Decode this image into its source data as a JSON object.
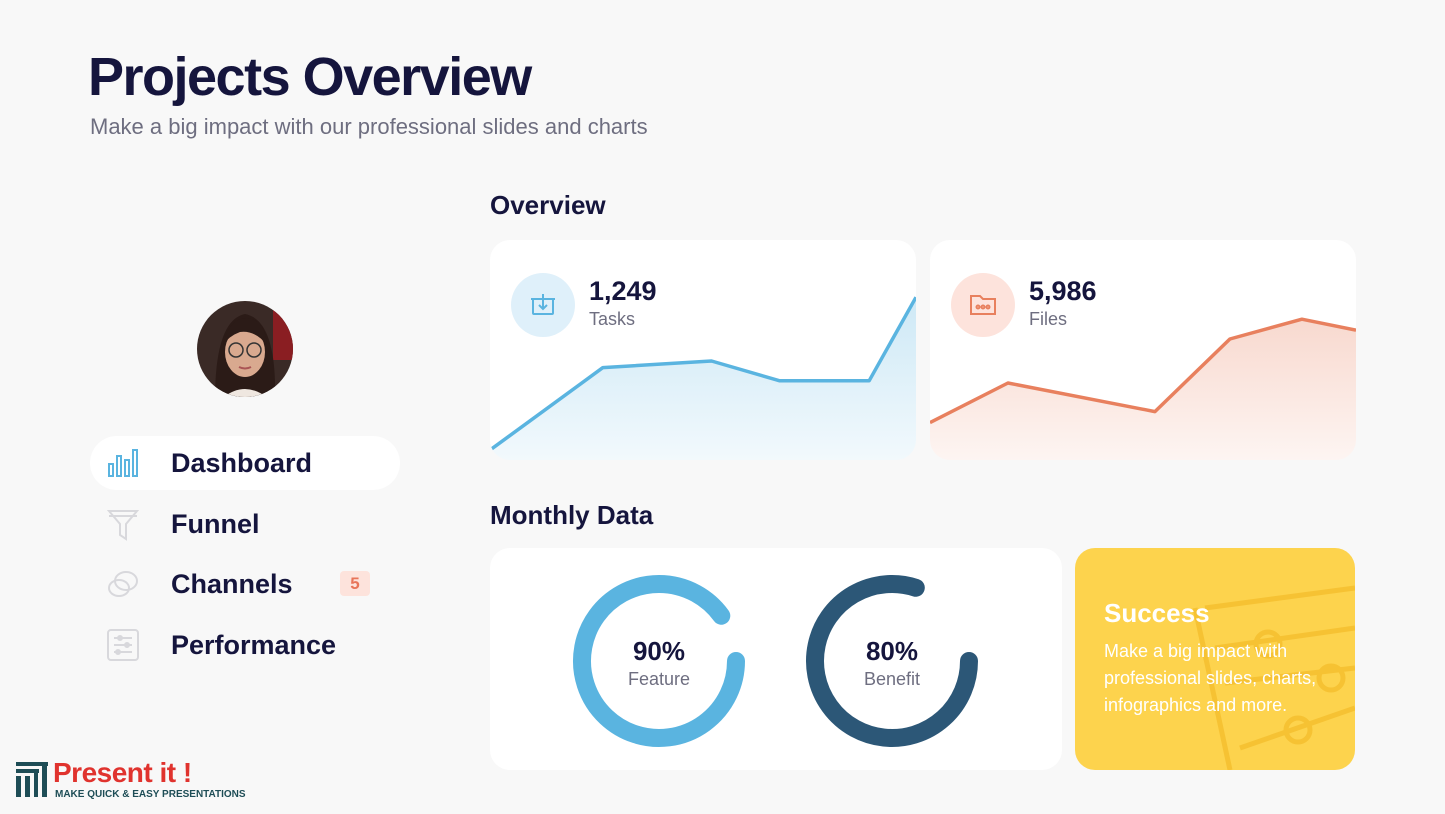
{
  "header": {
    "title": "Projects Overview",
    "subtitle": "Make a big impact with our professional slides and charts"
  },
  "sidebar": {
    "menu": [
      {
        "label": "Dashboard",
        "active": true
      },
      {
        "label": "Funnel",
        "active": false
      },
      {
        "label": "Channels",
        "active": false,
        "badge": 5
      },
      {
        "label": "Performance",
        "active": false
      }
    ]
  },
  "overview": {
    "title": "Overview",
    "cards": [
      {
        "value": 1249,
        "value_label": "1,249",
        "label": "Tasks",
        "color": "#5ab4e0",
        "xlim": [
          0,
          100
        ],
        "ylim": [
          0,
          100
        ],
        "trend_x": [
          0,
          26.5,
          52,
          68,
          89,
          100
        ],
        "trend_y": [
          4.5,
          42,
          45,
          36,
          36,
          74
        ]
      },
      {
        "value": 5986,
        "value_label": "5,986",
        "label": "Files",
        "color": "#e8805e",
        "xlim": [
          0,
          100
        ],
        "ylim": [
          0,
          100
        ],
        "trend_x": [
          0,
          18.3,
          52.8,
          70.4,
          87.3,
          100
        ],
        "trend_y": [
          17,
          35,
          22,
          55,
          64,
          59
        ]
      }
    ]
  },
  "monthly": {
    "title": "Monthly Data",
    "gauges": [
      {
        "value": 90,
        "value_label": "90%",
        "label": "Feature",
        "color": "#5ab4e0"
      },
      {
        "value": 80,
        "value_label": "80%",
        "label": "Benefit",
        "color": "#2c5777"
      }
    ],
    "success": {
      "title": "Success",
      "text": "Make a big impact with professional slides, charts, infographics and more."
    }
  },
  "brand": {
    "name": "Present it !",
    "tagline": "MAKE QUICK & EASY PRESENTATIONS"
  }
}
